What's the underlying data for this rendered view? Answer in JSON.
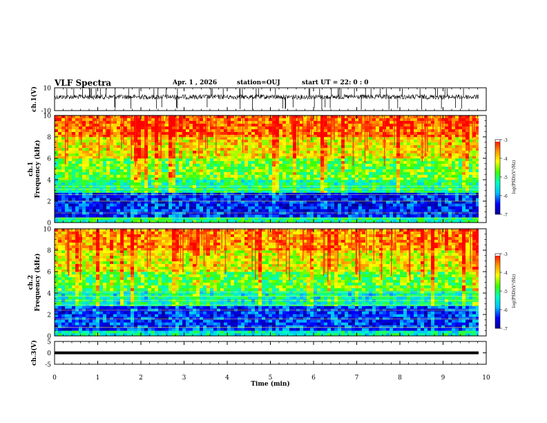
{
  "header": {
    "title": "VLF Spectra",
    "date": "Apr. 1 , 2026",
    "station": "station=OUJ",
    "start_ut": "start UT =  22: 0 : 0"
  },
  "chart_data": [
    {
      "type": "line",
      "panel": "ch1-waveform",
      "ylabel": "ch.1(V)",
      "ylim": [
        -10,
        10
      ],
      "yticks": [
        10,
        -10
      ],
      "xlim": [
        0,
        10
      ],
      "baseline": 2.0,
      "noise": "dense waveform around +2 V with spikes"
    },
    {
      "type": "heatmap",
      "panel": "ch1-spectrogram",
      "ylabel": "ch.1 Frequency (kHz)",
      "ylim": [
        0,
        10
      ],
      "yticks": [
        0,
        2,
        4,
        6,
        8,
        10
      ],
      "xlim": [
        0,
        9.8
      ],
      "colorbar": {
        "label": "log(PSD)(V²/Hz)",
        "range": [
          -7,
          -3
        ],
        "ticks": [
          "-3",
          "-4",
          "-5",
          "-6",
          "-7"
        ]
      },
      "bands": [
        {
          "fmin": 0.0,
          "fmax": 0.5,
          "level": -5.2
        },
        {
          "fmin": 0.5,
          "fmax": 2.8,
          "level": -6.5
        },
        {
          "fmin": 2.8,
          "fmax": 4.0,
          "level": -5.3
        },
        {
          "fmin": 4.0,
          "fmax": 6.0,
          "level": -4.8
        },
        {
          "fmin": 6.0,
          "fmax": 8.0,
          "level": -4.2
        },
        {
          "fmin": 8.0,
          "fmax": 10.0,
          "level": -3.6
        }
      ]
    },
    {
      "type": "heatmap",
      "panel": "ch2-spectrogram",
      "ylabel": "ch.2 Frequency (kHz)",
      "ylim": [
        0,
        10
      ],
      "yticks": [
        0,
        2,
        4,
        6,
        8,
        10
      ],
      "xlim": [
        0,
        9.8
      ],
      "colorbar": {
        "label": "log(PSD)(V²/Hz)",
        "range": [
          -7,
          -3
        ],
        "ticks": [
          "-3",
          "-4",
          "-5",
          "-6",
          "-7"
        ]
      },
      "bands": [
        {
          "fmin": 0.0,
          "fmax": 0.5,
          "level": -5.4
        },
        {
          "fmin": 0.5,
          "fmax": 2.8,
          "level": -6.4
        },
        {
          "fmin": 2.8,
          "fmax": 4.2,
          "level": -5.5
        },
        {
          "fmin": 4.2,
          "fmax": 6.0,
          "level": -4.9
        },
        {
          "fmin": 6.0,
          "fmax": 8.0,
          "level": -4.3
        },
        {
          "fmin": 8.0,
          "fmax": 10.0,
          "level": -3.8
        }
      ]
    },
    {
      "type": "line",
      "panel": "ch3-waveform",
      "ylabel": "ch.3(V)",
      "ylim": [
        -5,
        5
      ],
      "yticks": [
        5,
        0,
        -5
      ],
      "xlim": [
        0,
        10
      ],
      "baseline": 0.0
    }
  ],
  "xaxis": {
    "label": "Time (min)",
    "ticks": [
      "0",
      "1",
      "2",
      "3",
      "4",
      "5",
      "6",
      "7",
      "8",
      "9",
      "10"
    ]
  },
  "colors": {
    "background": "#ffffff",
    "axes": "#000000",
    "colormap": [
      "#00008f",
      "#0000ff",
      "#00bfff",
      "#00ffbf",
      "#3fff00",
      "#ffff00",
      "#ff8f00",
      "#ff0000",
      "#ffffff"
    ]
  }
}
